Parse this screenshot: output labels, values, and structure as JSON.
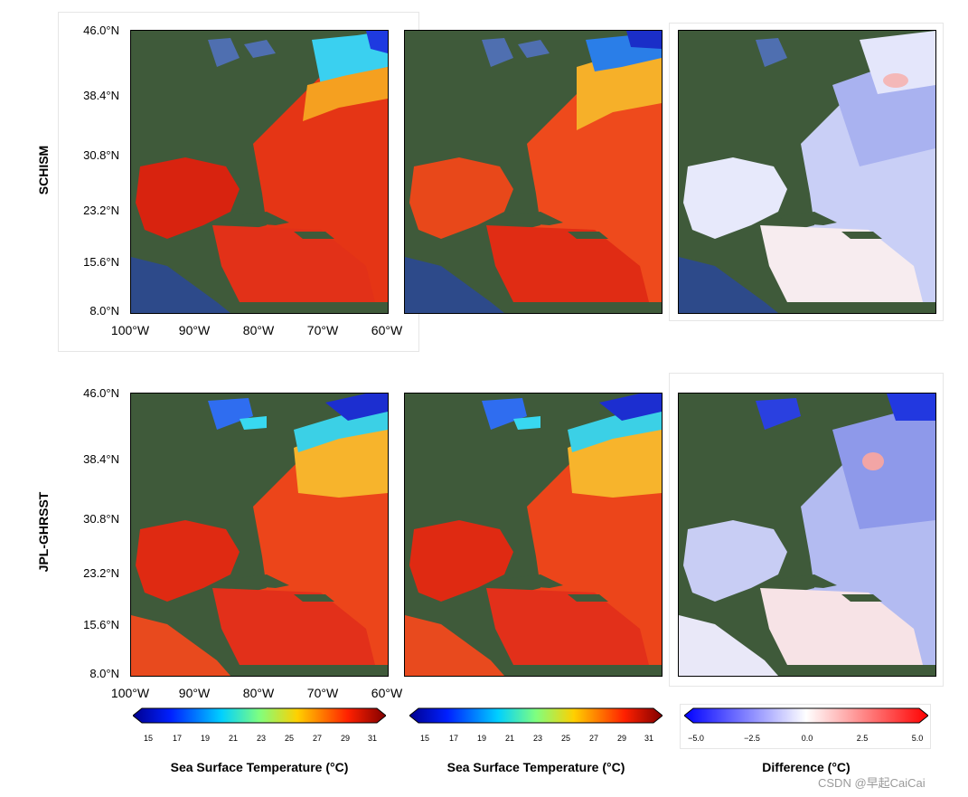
{
  "rows": [
    {
      "label": "SCHISM"
    },
    {
      "label": "JPL-GHRSST"
    }
  ],
  "y_ticks": [
    "46.0°N",
    "38.4°N",
    "30.8°N",
    "23.2°N",
    "15.6°N",
    "8.0°N"
  ],
  "x_ticks": [
    "100°W",
    "90°W",
    "80°W",
    "70°W",
    "60°W"
  ],
  "colorbars": [
    {
      "ticks": [
        "15",
        "17",
        "19",
        "21",
        "23",
        "25",
        "27",
        "29",
        "31"
      ],
      "title": "Sea Surface Temperature (°C)"
    },
    {
      "ticks": [
        "15",
        "17",
        "19",
        "21",
        "23",
        "25",
        "27",
        "29",
        "31"
      ],
      "title": "Sea Surface Temperature (°C)"
    },
    {
      "ticks": [
        "−5.0",
        "−2.5",
        "0.0",
        "2.5",
        "5.0"
      ],
      "title": "Difference (°C)"
    }
  ],
  "watermark": "CSDN @早起CaiCai",
  "colors": {
    "land": "#3f5a3a",
    "ocean_deep": "#2d4a8a",
    "warm": "#e8261a",
    "cold": "#1f3ad6"
  }
}
